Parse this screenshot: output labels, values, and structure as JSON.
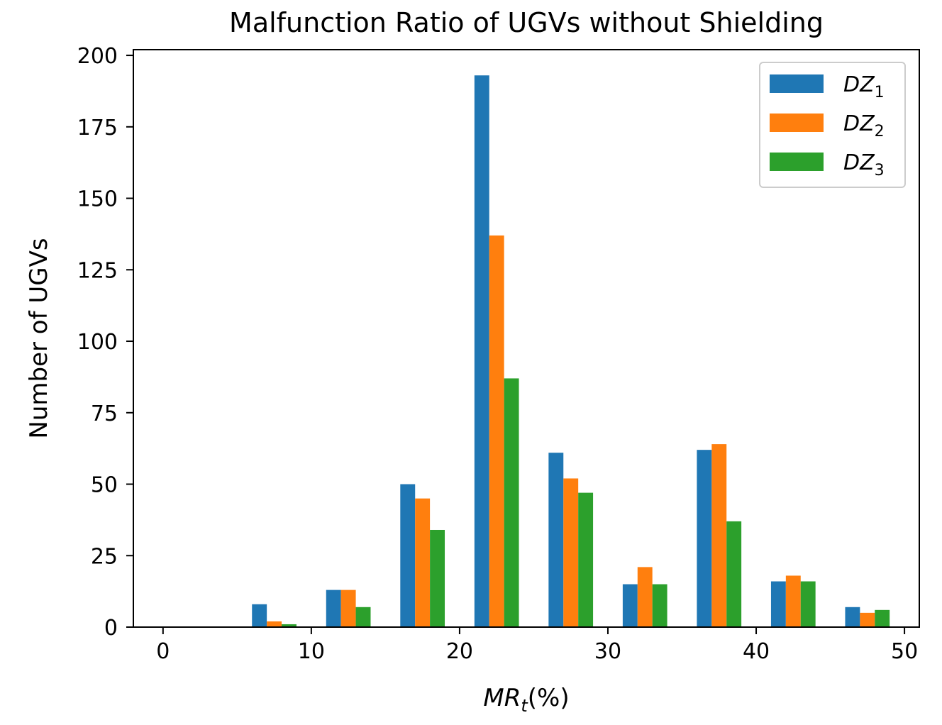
{
  "chart_data": {
    "type": "bar",
    "title": "Malfunction Ratio of UGVs without Shielding",
    "xlabel": "MR_t(%)",
    "xlabel_parts": {
      "main": "MR",
      "sub": "t",
      "rest": "(%)"
    },
    "ylabel": "Number of UGVs",
    "xlim": [
      -2,
      51
    ],
    "ylim": [
      0,
      202
    ],
    "xticks": [
      0,
      10,
      20,
      30,
      40,
      50
    ],
    "yticks": [
      0,
      25,
      50,
      75,
      100,
      125,
      150,
      175,
      200
    ],
    "bin_left_edges": [
      0,
      5,
      10,
      15,
      20,
      25,
      30,
      35,
      40,
      45
    ],
    "bar_width": 1,
    "legend_position": "top-right",
    "series": [
      {
        "name": "DZ1",
        "label_main": "DZ",
        "label_sub": "1",
        "color": "#1f77b4",
        "offset": 1,
        "values": [
          0,
          8,
          13,
          50,
          193,
          61,
          15,
          62,
          16,
          7
        ]
      },
      {
        "name": "DZ2",
        "label_main": "DZ",
        "label_sub": "2",
        "color": "#ff7f0e",
        "offset": 2,
        "values": [
          0,
          2,
          13,
          45,
          137,
          52,
          21,
          64,
          18,
          5
        ]
      },
      {
        "name": "DZ3",
        "label_main": "DZ",
        "label_sub": "3",
        "color": "#2ca02c",
        "offset": 3,
        "values": [
          0,
          1,
          7,
          34,
          87,
          47,
          15,
          37,
          16,
          6
        ]
      }
    ]
  }
}
